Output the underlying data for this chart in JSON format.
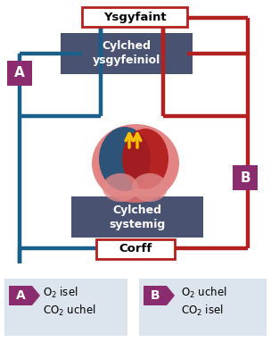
{
  "bg_color": "#ffffff",
  "blue_color": "#1a5f8a",
  "red_color": "#b22020",
  "dark_box_color": "#4a5272",
  "purple_color": "#8b2c6e",
  "lung_box_border": "#c0392b",
  "title_lung": "Ysgyfaint",
  "title_pulm": "Cylched\nysgyfeiniol",
  "title_sys": "Cylched\nsystemig",
  "title_body": "Corff",
  "legend_A_text1": "O₂ isel",
  "legend_A_text2": "CO₂ uchel",
  "legend_B_text1": "O₂ uchel",
  "legend_B_text2": "CO₂ isel",
  "legend_bg": "#dce4ed",
  "figsize": [
    3.04,
    3.83
  ],
  "dpi": 100
}
